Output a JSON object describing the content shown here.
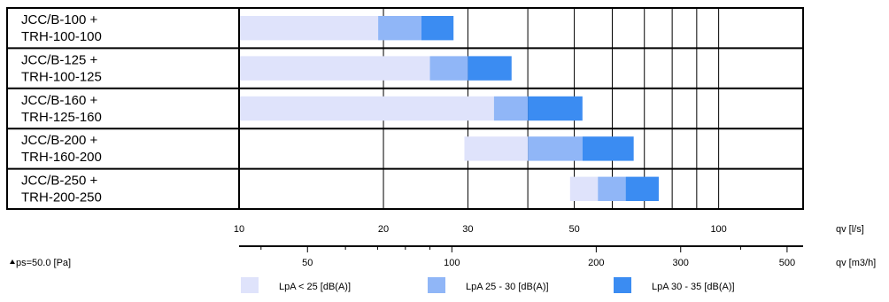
{
  "chart_data": {
    "type": "bar",
    "orientation": "horizontal",
    "stacked": true,
    "categories": [
      [
        "JCC/B-100 +",
        "TRH-100-100"
      ],
      [
        "JCC/B-125 +",
        "TRH-100-125"
      ],
      [
        "JCC/B-160 +",
        "TRH-125-160"
      ],
      [
        "JCC/B-200 +",
        "TRH-160-200"
      ],
      [
        "JCC/B-250 +",
        "TRH-200-250"
      ]
    ],
    "x_scale": "log",
    "xlim": [
      10,
      150
    ],
    "grid": true,
    "series": [
      {
        "name": "LpA < 25 [dB(A)]",
        "color": "#dfe3fb",
        "ranges": [
          [
            10,
            19.5
          ],
          [
            10,
            25
          ],
          [
            10,
            34
          ],
          [
            29.5,
            40
          ],
          [
            49,
            56
          ]
        ]
      },
      {
        "name": "LpA 25 - 30 [dB(A)]",
        "color": "#90b6f7",
        "ranges": [
          [
            19.5,
            24
          ],
          [
            25,
            30
          ],
          [
            34,
            40
          ],
          [
            40,
            52
          ],
          [
            56,
            64
          ]
        ]
      },
      {
        "name": "LpA 30 - 35 [dB(A)]",
        "color": "#3b8cf2",
        "ranges": [
          [
            24,
            28
          ],
          [
            30,
            37
          ],
          [
            40,
            52
          ],
          [
            52,
            66.5
          ],
          [
            64,
            75
          ]
        ]
      }
    ],
    "axes": {
      "primary": {
        "unit_label": "qv [l/s]",
        "ticks": [
          10,
          20,
          30,
          50,
          100
        ],
        "tick_labels": [
          "10",
          "20",
          "30",
          "50",
          "100"
        ]
      },
      "secondary": {
        "unit_label": "qv [m3/h]",
        "ticks": [
          50,
          100,
          200,
          300,
          500
        ],
        "tick_labels": [
          "50",
          "100",
          "200",
          "300",
          "500"
        ],
        "factor": 3.6
      }
    },
    "pressure_label": "ps=50.0 [Pa]",
    "legend_position": "bottom"
  }
}
